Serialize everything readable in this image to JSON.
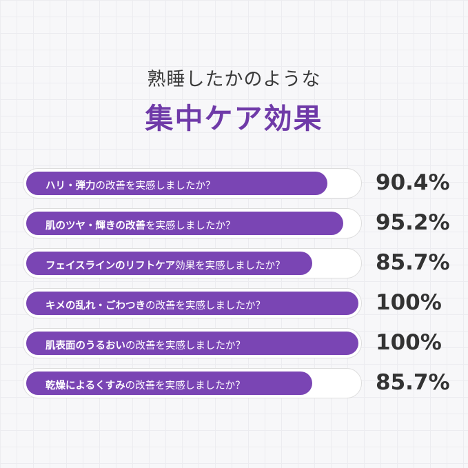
{
  "header": {
    "subtitle": "熟睡したかのような",
    "title": "集中ケア効果"
  },
  "colors": {
    "accent": "#7a45b4",
    "title": "#6f3aa8"
  },
  "chart_data": {
    "type": "bar",
    "orientation": "horizontal",
    "title": "集中ケア効果",
    "subtitle": "熟睡したかのような",
    "unit": "%",
    "xlim": [
      0,
      100
    ],
    "categories": [
      "ハリ・弾力の改善を実感しましたか？",
      "肌のツヤ・輝きの改善を実感しましたか？",
      "フェイスラインのリフトケア効果を実感しましたか？",
      "キメの乱れ・ごわつきの改善を実感しましたか？",
      "肌表面のうるおいの改善を実感しましたか？",
      "乾燥によるくすみの改善を実感しましたか？"
    ],
    "values": [
      90.4,
      95.2,
      85.7,
      100,
      100,
      85.7
    ],
    "value_labels": [
      "90.4%",
      "95.2%",
      "85.7%",
      "100%",
      "100%",
      "85.7%"
    ],
    "label_parts": [
      [
        [
          "ハリ・弾力",
          true
        ],
        [
          "の改善を実感しましたか？",
          false
        ]
      ],
      [
        [
          "肌のツヤ・輝きの改善",
          true
        ],
        [
          "を実感しましたか？",
          false
        ]
      ],
      [
        [
          "フェイスラインのリフトケア",
          true
        ],
        [
          "効果を実感しましたか？",
          false
        ]
      ],
      [
        [
          "キメの乱れ・ごわつき",
          true
        ],
        [
          "の改善を実感しましたか？",
          false
        ]
      ],
      [
        [
          "肌表面のうるおい",
          true
        ],
        [
          "の改善を実感しましたか？",
          false
        ]
      ],
      [
        [
          "乾燥によるくすみ",
          true
        ],
        [
          "の改善を実感しましたか？",
          false
        ]
      ]
    ]
  }
}
